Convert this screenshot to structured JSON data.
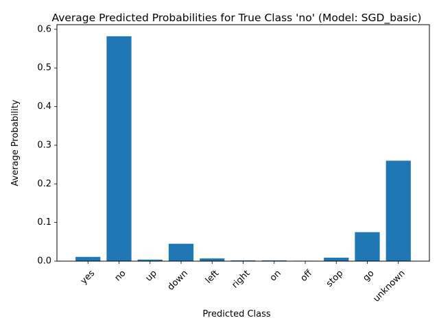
{
  "chart_data": {
    "type": "bar",
    "title": "Average Predicted Probabilities for True Class 'no' (Model: SGD_basic)",
    "xlabel": "Predicted Class",
    "ylabel": "Average Probability",
    "categories": [
      "yes",
      "no",
      "up",
      "down",
      "left",
      "right",
      "on",
      "off",
      "stop",
      "go",
      "unknown"
    ],
    "values": [
      0.011,
      0.582,
      0.004,
      0.045,
      0.007,
      0.002,
      0.002,
      0.001,
      0.009,
      0.075,
      0.26
    ],
    "ylim": [
      0,
      0.612
    ],
    "yticks": [
      0.0,
      0.1,
      0.2,
      0.3,
      0.4,
      0.5,
      0.6
    ],
    "ytick_labels": [
      "0.0",
      "0.1",
      "0.2",
      "0.3",
      "0.4",
      "0.5",
      "0.6"
    ],
    "bar_color": "#1f77b4",
    "grid": false,
    "legend": "none"
  }
}
